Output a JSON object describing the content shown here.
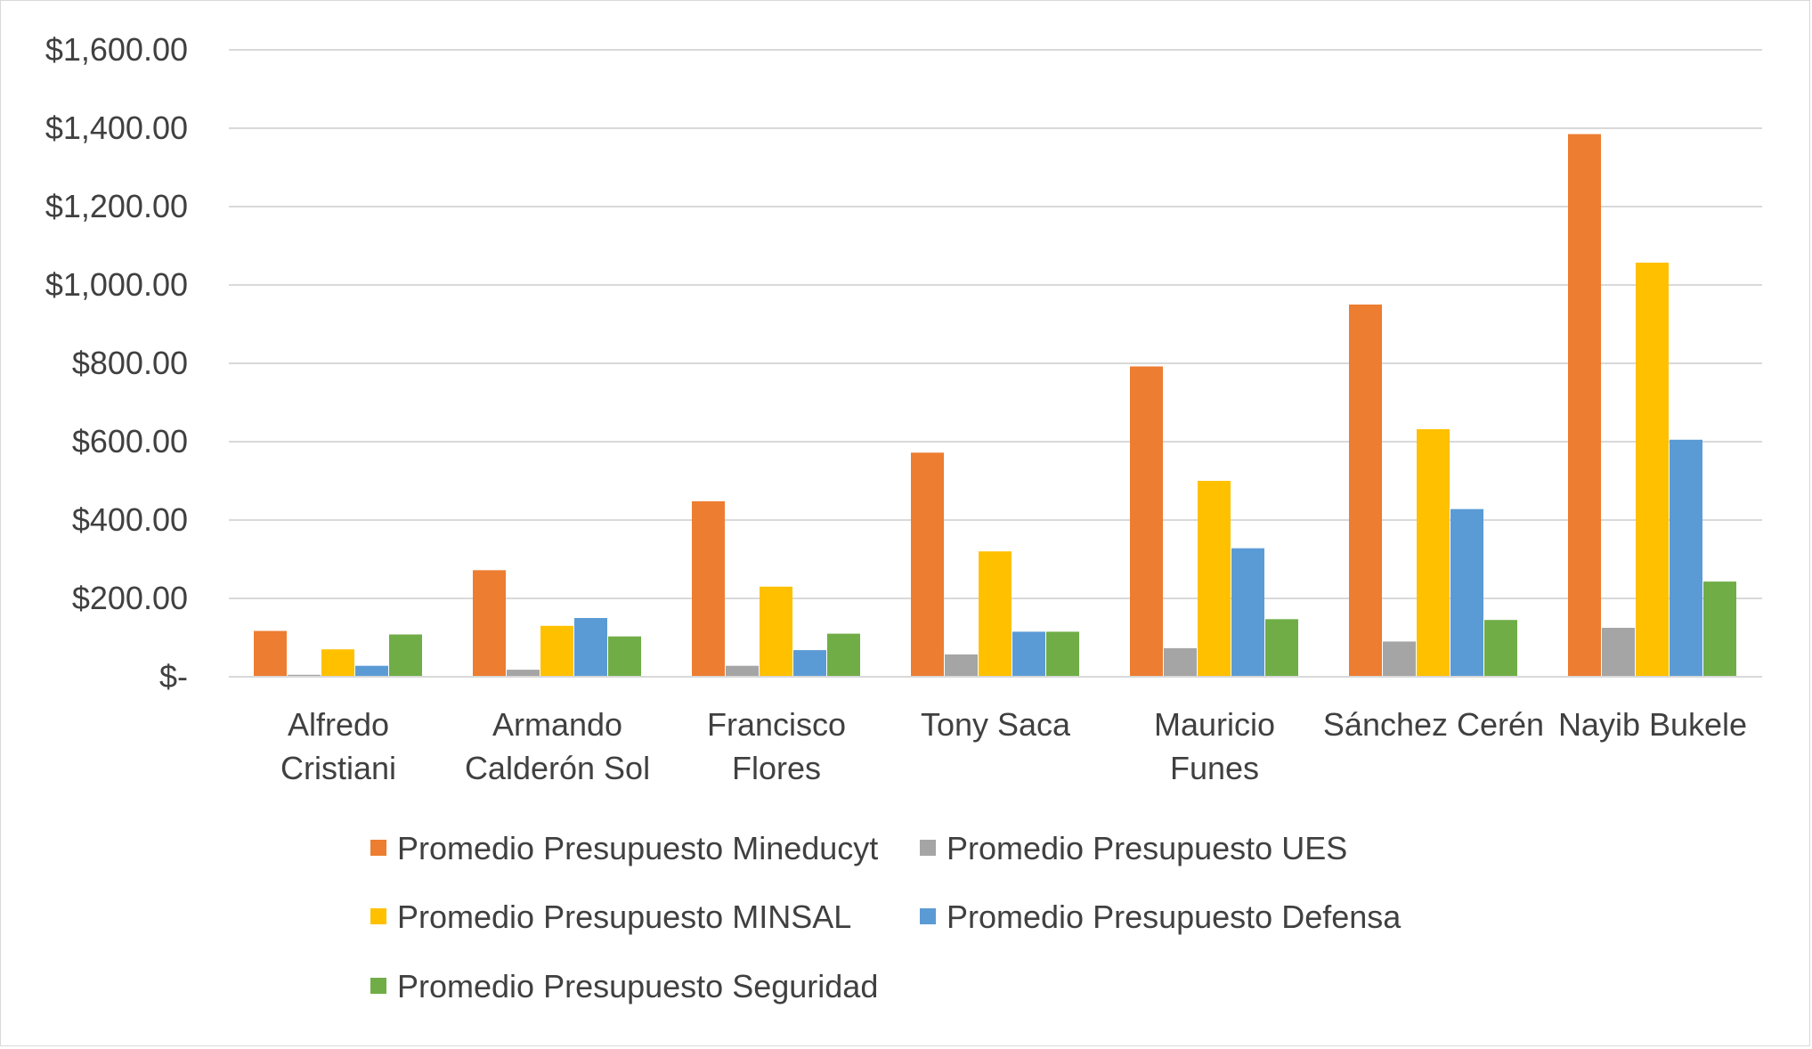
{
  "chart_data": {
    "type": "bar",
    "title": "",
    "xlabel": "",
    "ylabel": "",
    "ylim": [
      0,
      1600
    ],
    "yticks": [
      0,
      200,
      400,
      600,
      800,
      1000,
      1200,
      1400,
      1600
    ],
    "ytick_labels": [
      "$-",
      "$200.00",
      "$400.00",
      "$600.00",
      "$800.00",
      "$1,000.00",
      "$1,200.00",
      "$1,400.00",
      "$1,600.00"
    ],
    "grid": true,
    "legend_position": "bottom",
    "categories": [
      [
        "Alfredo",
        "Cristiani"
      ],
      [
        "Armando",
        "Calderón Sol"
      ],
      [
        "Francisco",
        "Flores"
      ],
      [
        "Tony Saca"
      ],
      [
        "Mauricio",
        "Funes"
      ],
      [
        "Sánchez Cerén"
      ],
      [
        "Nayib Bukele"
      ]
    ],
    "series": [
      {
        "name": "Promedio Presupuesto Mineducyt",
        "color": "#ED7D31",
        "values": [
          117,
          272,
          448,
          572,
          792,
          950,
          1385
        ]
      },
      {
        "name": "Promedio Presupuesto UES",
        "color": "#A5A5A5",
        "values": [
          5,
          18,
          28,
          57,
          73,
          90,
          125
        ]
      },
      {
        "name": "Promedio Presupuesto MINSAL",
        "color": "#FFC000",
        "values": [
          70,
          130,
          230,
          320,
          500,
          632,
          1057
        ]
      },
      {
        "name": "Promedio Presupuesto Defensa",
        "color": "#5B9BD5",
        "values": [
          28,
          150,
          68,
          115,
          328,
          428,
          605
        ]
      },
      {
        "name": "Promedio Presupuesto Seguridad",
        "color": "#70AD47",
        "values": [
          108,
          103,
          110,
          115,
          147,
          145,
          243
        ]
      }
    ]
  }
}
